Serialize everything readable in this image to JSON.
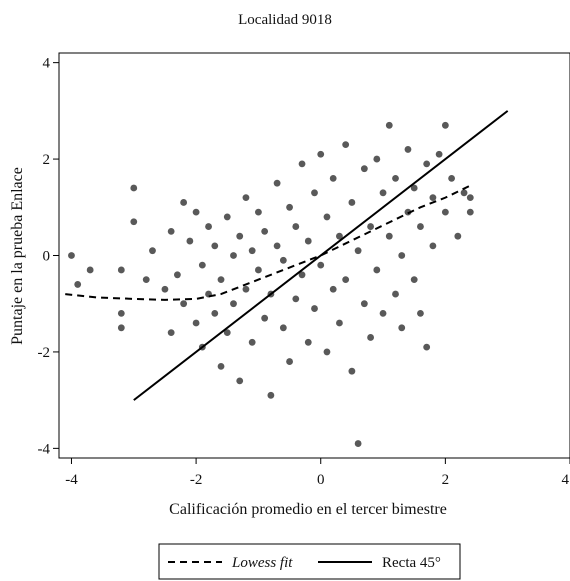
{
  "chart_data": {
    "type": "scatter",
    "title": "Localidad 9018",
    "xlabel": "Calificación promedio en el tercer bimestre",
    "ylabel": "Puntaje en la prueba Enlace",
    "xlim": [
      -4.2,
      4
    ],
    "ylim": [
      -4.2,
      4.2
    ],
    "x_ticks": [
      "-4",
      "-2",
      "0",
      "2",
      "4"
    ],
    "y_ticks": [
      "4",
      "2",
      "0",
      "-2",
      "-4"
    ],
    "grid": false,
    "legend_position": "bottom",
    "colors": {
      "points": "#595959",
      "lines": "#000000",
      "axis": "#000000"
    },
    "series": [
      {
        "name": "",
        "kind": "points",
        "sample": [
          [
            -4.0,
            0.0
          ],
          [
            -3.9,
            -0.6
          ],
          [
            -3.7,
            -0.3
          ],
          [
            -3.2,
            -0.3
          ],
          [
            -3.2,
            -1.5
          ],
          [
            -3.2,
            -1.2
          ],
          [
            -3.0,
            1.4
          ],
          [
            -3.0,
            0.7
          ],
          [
            -2.8,
            -0.5
          ],
          [
            -2.7,
            0.1
          ],
          [
            -2.5,
            -0.7
          ],
          [
            -2.4,
            0.5
          ],
          [
            -2.4,
            -1.6
          ],
          [
            -2.3,
            -0.4
          ],
          [
            -2.2,
            1.1
          ],
          [
            -2.2,
            -1.0
          ],
          [
            -2.1,
            0.3
          ],
          [
            -2.0,
            -1.4
          ],
          [
            -2.0,
            0.9
          ],
          [
            -1.9,
            -0.2
          ],
          [
            -1.9,
            -1.9
          ],
          [
            -1.8,
            -0.8
          ],
          [
            -1.8,
            0.6
          ],
          [
            -1.7,
            -1.2
          ],
          [
            -1.7,
            0.2
          ],
          [
            -1.6,
            -2.3
          ],
          [
            -1.6,
            -0.5
          ],
          [
            -1.5,
            0.8
          ],
          [
            -1.5,
            -1.6
          ],
          [
            -1.4,
            0.0
          ],
          [
            -1.4,
            -1.0
          ],
          [
            -1.3,
            0.4
          ],
          [
            -1.3,
            -2.6
          ],
          [
            -1.2,
            -0.7
          ],
          [
            -1.2,
            1.2
          ],
          [
            -1.1,
            -1.8
          ],
          [
            -1.1,
            0.1
          ],
          [
            -1.0,
            -0.3
          ],
          [
            -1.0,
            0.9
          ],
          [
            -0.9,
            -1.3
          ],
          [
            -0.9,
            0.5
          ],
          [
            -0.8,
            -2.9
          ],
          [
            -0.8,
            -0.8
          ],
          [
            -0.7,
            1.5
          ],
          [
            -0.7,
            0.2
          ],
          [
            -0.6,
            -1.5
          ],
          [
            -0.6,
            -0.1
          ],
          [
            -0.5,
            1.0
          ],
          [
            -0.5,
            -2.2
          ],
          [
            -0.4,
            0.6
          ],
          [
            -0.4,
            -0.9
          ],
          [
            -0.3,
            1.9
          ],
          [
            -0.3,
            -0.4
          ],
          [
            -0.2,
            -1.8
          ],
          [
            -0.2,
            0.3
          ],
          [
            -0.1,
            1.3
          ],
          [
            -0.1,
            -1.1
          ],
          [
            0.0,
            2.1
          ],
          [
            0.0,
            -0.2
          ],
          [
            0.1,
            -2.0
          ],
          [
            0.1,
            0.8
          ],
          [
            0.2,
            -0.7
          ],
          [
            0.2,
            1.6
          ],
          [
            0.3,
            -1.4
          ],
          [
            0.3,
            0.4
          ],
          [
            0.4,
            2.3
          ],
          [
            0.4,
            -0.5
          ],
          [
            0.5,
            1.1
          ],
          [
            0.5,
            -2.4
          ],
          [
            0.6,
            -3.9
          ],
          [
            0.6,
            0.1
          ],
          [
            0.7,
            1.8
          ],
          [
            0.7,
            -1.0
          ],
          [
            0.8,
            0.6
          ],
          [
            0.8,
            -1.7
          ],
          [
            0.9,
            2.0
          ],
          [
            0.9,
            -0.3
          ],
          [
            1.0,
            1.3
          ],
          [
            1.0,
            -1.2
          ],
          [
            1.1,
            2.7
          ],
          [
            1.1,
            0.4
          ],
          [
            1.2,
            -0.8
          ],
          [
            1.2,
            1.6
          ],
          [
            1.3,
            0.0
          ],
          [
            1.3,
            -1.5
          ],
          [
            1.4,
            2.2
          ],
          [
            1.4,
            0.9
          ],
          [
            1.5,
            -0.5
          ],
          [
            1.5,
            1.4
          ],
          [
            1.6,
            -1.2
          ],
          [
            1.6,
            0.6
          ],
          [
            1.7,
            1.9
          ],
          [
            1.7,
            -1.9
          ],
          [
            1.8,
            0.2
          ],
          [
            1.8,
            1.2
          ],
          [
            1.9,
            2.1
          ],
          [
            2.0,
            0.9
          ],
          [
            2.0,
            2.7
          ],
          [
            2.1,
            1.6
          ],
          [
            2.2,
            0.4
          ],
          [
            2.3,
            1.3
          ],
          [
            2.4,
            1.2
          ],
          [
            2.4,
            0.9
          ]
        ]
      },
      {
        "name": "Lowess fit",
        "kind": "line-dashed",
        "x": [
          -4.1,
          -3.6,
          -3.0,
          -2.5,
          -2.0,
          -1.6,
          -1.2,
          -0.8,
          -0.4,
          0.0,
          0.4,
          0.8,
          1.2,
          1.6,
          2.0,
          2.4
        ],
        "y": [
          -0.8,
          -0.87,
          -0.9,
          -0.92,
          -0.9,
          -0.8,
          -0.6,
          -0.4,
          -0.2,
          0.0,
          0.25,
          0.5,
          0.75,
          1.0,
          1.2,
          1.45
        ]
      },
      {
        "name": "Recta 45°",
        "kind": "line-solid",
        "x": [
          -3,
          3
        ],
        "y": [
          -3,
          3
        ]
      }
    ]
  }
}
